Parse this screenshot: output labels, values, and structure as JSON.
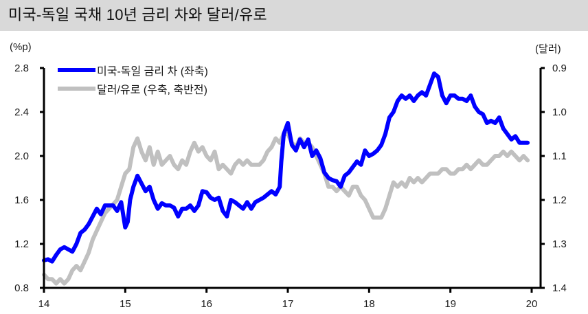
{
  "title": "미국-독일 국채 10년 금리 차와 달러/유로",
  "left_unit": "(%p)",
  "right_unit": "(달러)",
  "legend": [
    {
      "label": "미국-독일 금리 차 (좌축)",
      "color": "#0000ff"
    },
    {
      "label": "달러/유로 (우축, 축반전)",
      "color": "#c0c0c0"
    }
  ],
  "chart_data": {
    "type": "line",
    "title": "미국-독일 국채 10년 금리 차와 달러/유로",
    "xlabel": "",
    "ylabel": "(%p)",
    "ylabel_right": "(달러)",
    "x_ticks": [
      "14",
      "15",
      "16",
      "17",
      "18",
      "19",
      "20"
    ],
    "left_axis": {
      "ylim": [
        0.8,
        2.8
      ],
      "ticks": [
        "2.8",
        "2.4",
        "2.0",
        "1.6",
        "1.2",
        "0.8"
      ]
    },
    "right_axis": {
      "ylim": [
        0.9,
        1.4
      ],
      "inverted": true,
      "ticks": [
        "0.9",
        "1.0",
        "1.1",
        "1.2",
        "1.3",
        "1.4"
      ]
    },
    "grid": false,
    "legend_position": "upper-left",
    "series": [
      {
        "name": "미국-독일 금리 차 (좌축)",
        "axis": "left",
        "color": "#0000ff",
        "x": [
          14.0,
          14.05,
          14.1,
          14.15,
          14.2,
          14.25,
          14.3,
          14.35,
          14.4,
          14.45,
          14.5,
          14.55,
          14.6,
          14.65,
          14.7,
          14.75,
          14.8,
          14.85,
          14.9,
          14.95,
          15.0,
          15.03,
          15.06,
          15.1,
          15.15,
          15.2,
          15.25,
          15.3,
          15.35,
          15.4,
          15.45,
          15.5,
          15.55,
          15.6,
          15.65,
          15.7,
          15.75,
          15.8,
          15.85,
          15.9,
          15.95,
          16.0,
          16.05,
          16.1,
          16.15,
          16.2,
          16.25,
          16.3,
          16.35,
          16.4,
          16.45,
          16.5,
          16.55,
          16.6,
          16.65,
          16.7,
          16.75,
          16.8,
          16.85,
          16.9,
          16.92,
          16.95,
          17.0,
          17.05,
          17.1,
          17.15,
          17.2,
          17.25,
          17.3,
          17.35,
          17.4,
          17.45,
          17.5,
          17.55,
          17.6,
          17.65,
          17.7,
          17.75,
          17.8,
          17.85,
          17.9,
          17.95,
          18.0,
          18.05,
          18.1,
          18.15,
          18.2,
          18.25,
          18.3,
          18.35,
          18.4,
          18.45,
          18.5,
          18.55,
          18.6,
          18.65,
          18.7,
          18.75,
          18.8,
          18.85,
          18.9,
          18.95,
          19.0,
          19.05,
          19.1,
          19.15,
          19.2,
          19.25,
          19.3,
          19.35,
          19.4,
          19.45,
          19.5,
          19.55,
          19.6,
          19.65,
          19.7,
          19.75,
          19.8,
          19.85,
          19.9,
          19.95
        ],
        "values": [
          1.05,
          1.06,
          1.04,
          1.1,
          1.15,
          1.17,
          1.15,
          1.13,
          1.2,
          1.3,
          1.33,
          1.38,
          1.45,
          1.52,
          1.47,
          1.55,
          1.55,
          1.55,
          1.5,
          1.58,
          1.35,
          1.4,
          1.6,
          1.72,
          1.82,
          1.75,
          1.68,
          1.72,
          1.6,
          1.52,
          1.57,
          1.55,
          1.55,
          1.53,
          1.45,
          1.52,
          1.52,
          1.55,
          1.5,
          1.55,
          1.68,
          1.67,
          1.62,
          1.6,
          1.62,
          1.5,
          1.45,
          1.6,
          1.58,
          1.55,
          1.52,
          1.58,
          1.52,
          1.58,
          1.6,
          1.62,
          1.65,
          1.68,
          1.65,
          1.72,
          1.95,
          2.2,
          2.3,
          2.1,
          2.05,
          2.15,
          2.08,
          2.15,
          2.0,
          2.05,
          1.98,
          1.85,
          1.8,
          1.78,
          1.77,
          1.72,
          1.82,
          1.85,
          1.9,
          1.95,
          1.92,
          2.05,
          2.0,
          2.02,
          2.05,
          2.1,
          2.2,
          2.35,
          2.4,
          2.5,
          2.55,
          2.52,
          2.55,
          2.5,
          2.55,
          2.58,
          2.55,
          2.65,
          2.75,
          2.72,
          2.55,
          2.48,
          2.55,
          2.55,
          2.52,
          2.52,
          2.5,
          2.55,
          2.45,
          2.4,
          2.38,
          2.3,
          2.32,
          2.3,
          2.35,
          2.25,
          2.2,
          2.15,
          2.18,
          2.12,
          2.12,
          2.12
        ]
      },
      {
        "name": "달러/유로 (우축, 축반전)",
        "axis": "right",
        "color": "#c0c0c0",
        "x": [
          14.0,
          14.05,
          14.1,
          14.15,
          14.2,
          14.25,
          14.3,
          14.35,
          14.4,
          14.45,
          14.5,
          14.55,
          14.6,
          14.65,
          14.7,
          14.75,
          14.8,
          14.85,
          14.9,
          14.95,
          15.0,
          15.05,
          15.1,
          15.15,
          15.2,
          15.25,
          15.3,
          15.35,
          15.4,
          15.45,
          15.5,
          15.55,
          15.6,
          15.65,
          15.7,
          15.75,
          15.8,
          15.85,
          15.9,
          15.95,
          16.0,
          16.05,
          16.1,
          16.15,
          16.2,
          16.25,
          16.3,
          16.35,
          16.4,
          16.45,
          16.5,
          16.55,
          16.6,
          16.65,
          16.7,
          16.75,
          16.8,
          16.85,
          16.9,
          16.95,
          17.0,
          17.05,
          17.1,
          17.15,
          17.2,
          17.25,
          17.3,
          17.35,
          17.4,
          17.45,
          17.5,
          17.55,
          17.6,
          17.65,
          17.7,
          17.75,
          17.8,
          17.85,
          17.9,
          17.95,
          18.0,
          18.05,
          18.1,
          18.15,
          18.2,
          18.25,
          18.3,
          18.35,
          18.4,
          18.45,
          18.5,
          18.55,
          18.6,
          18.65,
          18.7,
          18.75,
          18.8,
          18.85,
          18.9,
          18.95,
          19.0,
          19.05,
          19.1,
          19.15,
          19.2,
          19.25,
          19.3,
          19.35,
          19.4,
          19.45,
          19.5,
          19.55,
          19.6,
          19.65,
          19.7,
          19.75,
          19.8,
          19.85,
          19.9,
          19.95
        ],
        "values": [
          1.37,
          1.38,
          1.38,
          1.39,
          1.38,
          1.39,
          1.38,
          1.36,
          1.35,
          1.36,
          1.34,
          1.32,
          1.29,
          1.27,
          1.25,
          1.23,
          1.22,
          1.21,
          1.2,
          1.17,
          1.14,
          1.13,
          1.08,
          1.06,
          1.09,
          1.11,
          1.08,
          1.12,
          1.09,
          1.12,
          1.11,
          1.1,
          1.12,
          1.13,
          1.11,
          1.12,
          1.09,
          1.07,
          1.09,
          1.08,
          1.1,
          1.11,
          1.09,
          1.13,
          1.12,
          1.13,
          1.14,
          1.12,
          1.11,
          1.12,
          1.11,
          1.12,
          1.12,
          1.12,
          1.11,
          1.09,
          1.08,
          1.06,
          1.07,
          1.05,
          1.05,
          1.07,
          1.08,
          1.06,
          1.07,
          1.07,
          1.08,
          1.1,
          1.12,
          1.14,
          1.17,
          1.17,
          1.18,
          1.17,
          1.18,
          1.19,
          1.17,
          1.17,
          1.19,
          1.2,
          1.22,
          1.24,
          1.24,
          1.24,
          1.22,
          1.19,
          1.16,
          1.17,
          1.16,
          1.17,
          1.15,
          1.16,
          1.15,
          1.16,
          1.15,
          1.14,
          1.14,
          1.14,
          1.13,
          1.13,
          1.14,
          1.14,
          1.13,
          1.13,
          1.12,
          1.13,
          1.12,
          1.11,
          1.12,
          1.12,
          1.11,
          1.1,
          1.1,
          1.09,
          1.1,
          1.09,
          1.1,
          1.11,
          1.1,
          1.11
        ]
      }
    ]
  }
}
